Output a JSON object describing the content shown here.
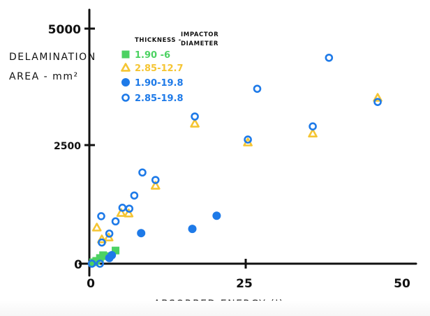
{
  "chart_data": {
    "type": "scatter",
    "title": "",
    "xlabel": "ABSORBED ENERGY (J)",
    "ylabel_lines": [
      "DELAMINATION",
      "AREA - mm²"
    ],
    "xlim": [
      0,
      52
    ],
    "ylim": [
      0,
      5500
    ],
    "xticks": [
      0,
      25,
      50
    ],
    "xtick_labels": [
      "0",
      "25",
      "50"
    ],
    "yticks": [
      0,
      2500,
      5000
    ],
    "ytick_labels": [
      "0",
      "2500",
      "5000"
    ],
    "grid": false,
    "legend": {
      "placement": "top-left",
      "title_lines": [
        "THICKNESS -",
        "IMPACTOR",
        "DIAMETER"
      ],
      "entries": [
        {
          "label": "1.90 -6",
          "marker": "square-filled",
          "color": "#4cd262"
        },
        {
          "label": "2.85-12.7",
          "marker": "triangle-open",
          "color": "#f5c533"
        },
        {
          "label": "1.90-19.8",
          "marker": "circle-filled",
          "color": "#1e7ae8"
        },
        {
          "label": "2.85-19.8",
          "marker": "circle-open",
          "color": "#1e7ae8"
        }
      ]
    },
    "series": [
      {
        "name": "1.90 -6",
        "marker": "square-filled",
        "color": "#4cd262",
        "points": [
          [
            0.6,
            30
          ],
          [
            1.1,
            60
          ],
          [
            1.7,
            120
          ],
          [
            2.2,
            180
          ],
          [
            2.7,
            160
          ],
          [
            4.2,
            280
          ]
        ]
      },
      {
        "name": "2.85-12.7",
        "marker": "triangle-open",
        "color": "#f5c533",
        "points": [
          [
            1.2,
            770
          ],
          [
            2.0,
            520
          ],
          [
            3.1,
            560
          ],
          [
            5.1,
            1080
          ],
          [
            6.3,
            1070
          ],
          [
            10.6,
            1660
          ],
          [
            16.9,
            2980
          ],
          [
            25.4,
            2580
          ],
          [
            35.8,
            2770
          ],
          [
            46.2,
            3530
          ]
        ]
      },
      {
        "name": "1.90-19.8",
        "marker": "circle-filled",
        "color": "#1e7ae8",
        "points": [
          [
            3.2,
            120
          ],
          [
            3.6,
            180
          ],
          [
            8.3,
            650
          ],
          [
            16.5,
            740
          ],
          [
            20.4,
            1020
          ]
        ]
      },
      {
        "name": "2.85-19.8",
        "marker": "circle-open",
        "color": "#1e7ae8",
        "points": [
          [
            0.4,
            0
          ],
          [
            1.7,
            0
          ],
          [
            2.0,
            450
          ],
          [
            1.9,
            1010
          ],
          [
            3.2,
            640
          ],
          [
            4.2,
            900
          ],
          [
            5.3,
            1190
          ],
          [
            6.4,
            1170
          ],
          [
            7.2,
            1450
          ],
          [
            8.5,
            1940
          ],
          [
            10.6,
            1780
          ],
          [
            16.9,
            3130
          ],
          [
            25.4,
            2640
          ],
          [
            26.9,
            3720
          ],
          [
            35.8,
            2920
          ],
          [
            38.4,
            4380
          ],
          [
            46.2,
            3440
          ]
        ]
      }
    ]
  }
}
